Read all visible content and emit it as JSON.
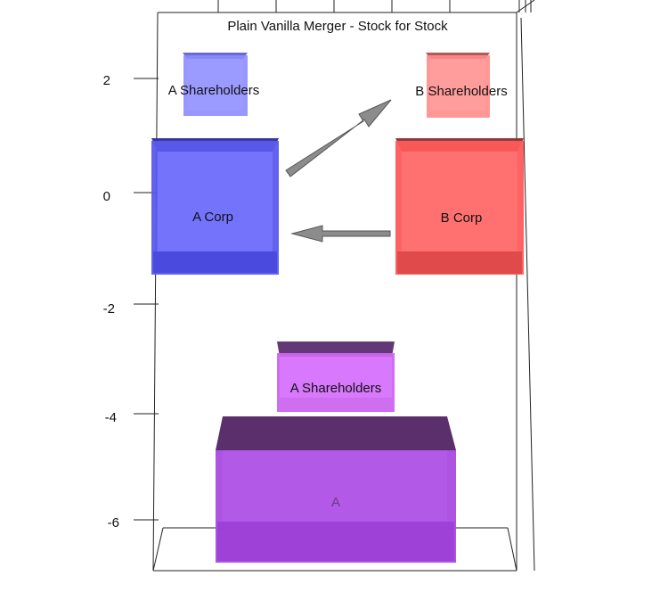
{
  "title": "Plain Vanilla Merger - Stock for Stock",
  "axis": {
    "ticks": [
      {
        "value": 2,
        "label": "2"
      },
      {
        "value": 0,
        "label": "0"
      },
      {
        "value": -2,
        "label": "-2"
      },
      {
        "value": -4,
        "label": "-4"
      },
      {
        "value": -6,
        "label": "-6"
      }
    ]
  },
  "boxes": {
    "a_shareholders_top": {
      "label": "A Shareholders",
      "color": "#8c8cff"
    },
    "b_shareholders_top": {
      "label": "B Shareholders",
      "color": "#ff8c8c"
    },
    "a_corp": {
      "label": "A Corp",
      "color": "#5a5aee"
    },
    "b_corp": {
      "label": "B Corp",
      "color": "#ff5a5a"
    },
    "a_shareholders_bottom": {
      "label": "A Shareholders",
      "color": "#cc66ee"
    },
    "a_merged": {
      "label": "A",
      "color": "#a94be0"
    }
  }
}
